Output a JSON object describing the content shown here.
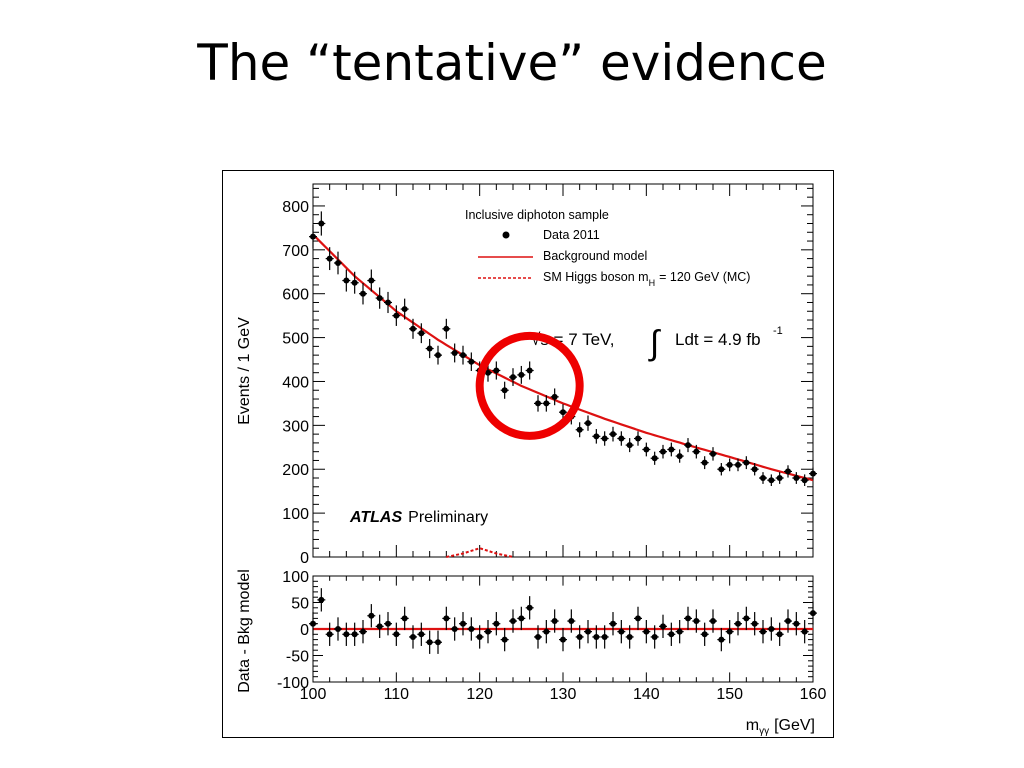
{
  "slide": {
    "title": "The “tentative” evidence"
  },
  "colors": {
    "model_line": "#dd1111",
    "highlight_circle": "#ee0000",
    "data_marker": "#000000"
  },
  "chart_data": [
    {
      "type": "scatter",
      "panel": "main",
      "ylabel": "Events / 1 GeV",
      "xlim": [
        100,
        160
      ],
      "ylim": [
        0,
        850
      ],
      "yticks": [
        "0",
        "100",
        "200",
        "300",
        "400",
        "500",
        "600",
        "700",
        "800"
      ],
      "legend": {
        "placement": "top-right",
        "title": "Inclusive diphoton sample",
        "entries": [
          "Data 2011",
          "Background model",
          "SM Higgs boson m",
          "H",
          "= 120 GeV (MC)"
        ]
      },
      "lumi": {
        "sqrt_s": "√s = 7 TeV,",
        "int_symbol": "∫",
        "ldt": "Ldt = 4.9 fb",
        "sup": "-1"
      },
      "atlas": {
        "bold": "ATLAS",
        "rest": "Preliminary"
      },
      "highlight": {
        "label": "",
        "x": 126,
        "y": 390
      },
      "series": [
        {
          "name": "Data 2011",
          "x": [
            100,
            101,
            102,
            103,
            104,
            105,
            106,
            107,
            108,
            109,
            110,
            111,
            112,
            113,
            114,
            115,
            116,
            117,
            118,
            119,
            120,
            121,
            122,
            123,
            124,
            125,
            126,
            127,
            128,
            129,
            130,
            131,
            132,
            133,
            134,
            135,
            136,
            137,
            138,
            139,
            140,
            141,
            142,
            143,
            144,
            145,
            146,
            147,
            148,
            149,
            150,
            151,
            152,
            153,
            154,
            155,
            156,
            157,
            158,
            159,
            160
          ],
          "values": [
            730,
            760,
            680,
            670,
            630,
            625,
            600,
            630,
            590,
            580,
            550,
            565,
            520,
            510,
            475,
            460,
            520,
            465,
            460,
            445,
            425,
            420,
            425,
            380,
            410,
            415,
            425,
            350,
            350,
            365,
            330,
            320,
            290,
            305,
            275,
            270,
            280,
            270,
            255,
            270,
            245,
            225,
            240,
            245,
            230,
            255,
            240,
            215,
            235,
            200,
            210,
            210,
            215,
            200,
            180,
            175,
            180,
            195,
            180,
            175,
            190
          ]
        },
        {
          "name": "Background model",
          "function": "line",
          "x": [
            100,
            105,
            110,
            115,
            120,
            125,
            130,
            135,
            140,
            145,
            150,
            155,
            160
          ],
          "values": [
            735,
            640,
            560,
            495,
            437,
            390,
            350,
            315,
            283,
            255,
            228,
            200,
            175
          ]
        },
        {
          "name": "SM Higgs boson m H = 120 GeV (MC)",
          "function": "dashed",
          "x": [
            116,
            118,
            120,
            122,
            124
          ],
          "values": [
            0,
            8,
            20,
            8,
            0
          ]
        }
      ]
    },
    {
      "type": "scatter",
      "panel": "residual",
      "ylabel": "Data - Bkg model",
      "xlabel": "m",
      "xlabel_sub": "γγ",
      "xlabel_unit": "[GeV]",
      "xlim": [
        100,
        160
      ],
      "ylim": [
        -100,
        100
      ],
      "yticks": [
        "100",
        "50",
        "0",
        "-50",
        "-100"
      ],
      "xticks": [
        "100",
        "110",
        "120",
        "130",
        "140",
        "150",
        "160"
      ],
      "series": [
        {
          "name": "Data - Bkg model",
          "x": [
            100,
            101,
            102,
            103,
            104,
            105,
            106,
            107,
            108,
            109,
            110,
            111,
            112,
            113,
            114,
            115,
            116,
            117,
            118,
            119,
            120,
            121,
            122,
            123,
            124,
            125,
            126,
            127,
            128,
            129,
            130,
            131,
            132,
            133,
            134,
            135,
            136,
            137,
            138,
            139,
            140,
            141,
            142,
            143,
            144,
            145,
            146,
            147,
            148,
            149,
            150,
            151,
            152,
            153,
            154,
            155,
            156,
            157,
            158,
            159,
            160
          ],
          "values": [
            10,
            55,
            -10,
            0,
            -10,
            -10,
            -5,
            25,
            5,
            10,
            -10,
            20,
            -15,
            -10,
            -25,
            -25,
            20,
            0,
            10,
            0,
            -15,
            -5,
            10,
            -20,
            15,
            20,
            40,
            -15,
            -5,
            15,
            -20,
            15,
            -15,
            -5,
            -15,
            -15,
            10,
            -5,
            -15,
            20,
            -5,
            -15,
            5,
            -10,
            -5,
            20,
            15,
            -10,
            15,
            -20,
            -5,
            10,
            20,
            10,
            -5,
            0,
            -10,
            15,
            10,
            -5,
            30
          ]
        }
      ]
    }
  ]
}
